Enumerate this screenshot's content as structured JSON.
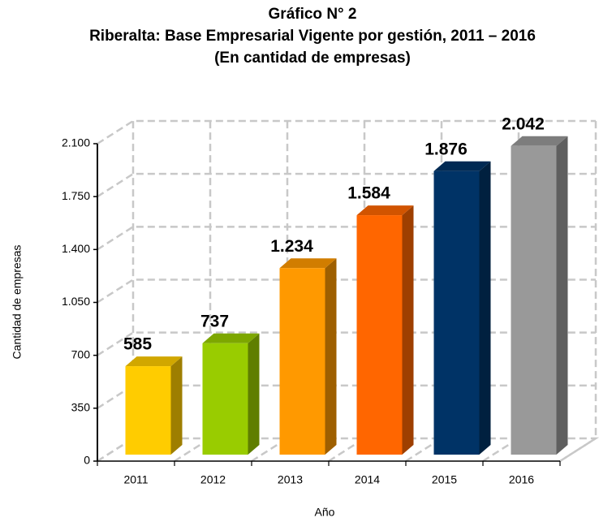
{
  "chart_data": {
    "type": "bar3d",
    "title": "Gráfico N° 2",
    "subtitle": "Riberalta: Base Empresarial Vigente por gestión, 2011 – 2016",
    "subtitle2": "(En cantidad de empresas)",
    "y_label": "Cantidad de empresas",
    "x_label": "Año",
    "categories": [
      "2011",
      "2012",
      "2013",
      "2014",
      "2015",
      "2016"
    ],
    "values": [
      585,
      737,
      1234,
      1584,
      1876,
      2042
    ],
    "value_labels": [
      "585",
      "737",
      "1.234",
      "1.584",
      "1.876",
      "2.042"
    ],
    "colors": [
      "#ffcc00",
      "#99cc00",
      "#ff9900",
      "#ff6600",
      "#003366",
      "#999999"
    ],
    "ylim": [
      0,
      2100
    ],
    "yticks": [
      0,
      350,
      700,
      {
        "value": 1050,
        "label": "1.050"
      },
      {
        "value": 1400,
        "label": "1.400"
      },
      {
        "value": 1750,
        "label": "1.750"
      },
      {
        "value": 2100,
        "label": "2.100"
      }
    ],
    "grid": true
  }
}
